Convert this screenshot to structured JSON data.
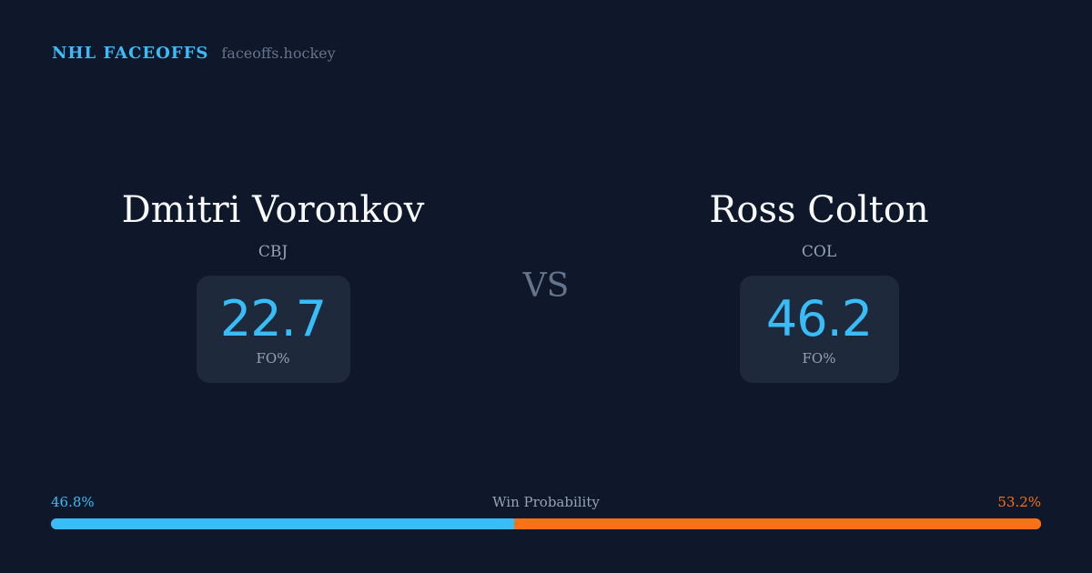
{
  "header": {
    "title": "NHL FACEOFFS",
    "site": "faceoffs.hockey"
  },
  "players": [
    {
      "name": "Dmitri Voronkov",
      "team": "CBJ",
      "stat_value": "22.7",
      "stat_label": "FO%"
    },
    {
      "name": "Ross Colton",
      "team": "COL",
      "stat_value": "46.2",
      "stat_label": "FO%"
    }
  ],
  "vs_label": "VS",
  "win_probability": {
    "label": "Win Probability",
    "left_text": "46.8%",
    "right_text": "53.2%",
    "left_value": 46.8,
    "right_value": 53.2
  },
  "colors": {
    "background": "#0f172a",
    "card": "#1e293b",
    "left_accent": "#38bdf8",
    "right_accent": "#f97316",
    "muted": "#94a3b8"
  }
}
